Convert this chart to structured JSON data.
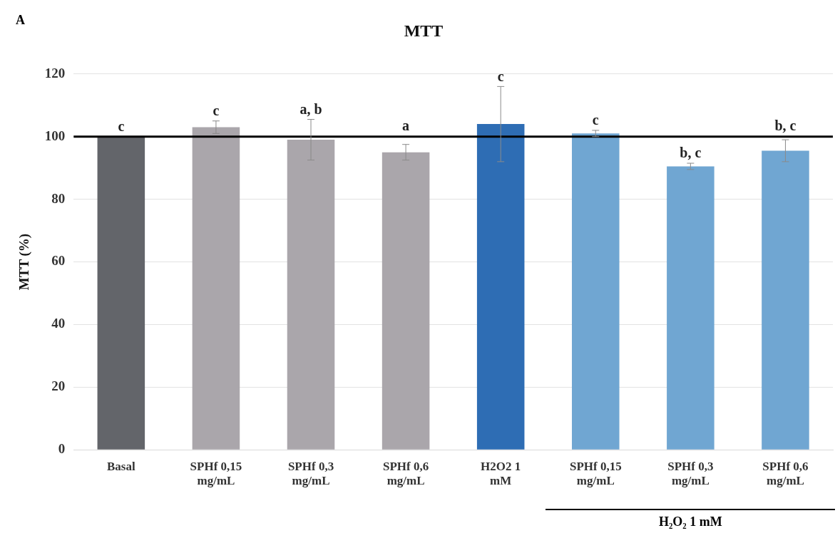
{
  "chart_data": {
    "type": "bar",
    "title": "MTT",
    "ylabel": "MTT (%)",
    "categories": [
      "Basal",
      "SPHf 0,15 mg/mL",
      "SPHf 0,3 mg/mL",
      "SPHf 0,6 mg/mL",
      "H2O2 1 mM",
      "SPHf 0,15 mg/mL",
      "SPHf 0,3 mg/mL",
      "SPHf 0,6 mg/mL"
    ],
    "values": [
      100,
      103,
      99,
      95,
      104,
      101,
      90.5,
      95.5
    ],
    "colors": [
      "#63656a",
      "#aaa6ab",
      "#aaa6ab",
      "#aaa6ab",
      "#2e6db4",
      "#70a6d2",
      "#70a6d2",
      "#70a6d2"
    ],
    "errors": [
      null,
      2,
      6.5,
      2.5,
      12,
      1,
      1,
      3.5
    ],
    "value_labels": [
      "c",
      "c",
      "a, b",
      "a",
      "c",
      "c",
      "b, c",
      "b, c"
    ],
    "ylim": [
      0,
      120
    ],
    "yticks": [
      0,
      20,
      40,
      60,
      80,
      100,
      120
    ],
    "grid": "y",
    "legend": false,
    "ref_lines": [
      {
        "axis": "y",
        "value": 100,
        "color": "#000000"
      }
    ],
    "annotations": [
      "A",
      "H₂O₂ 1 mM"
    ]
  }
}
